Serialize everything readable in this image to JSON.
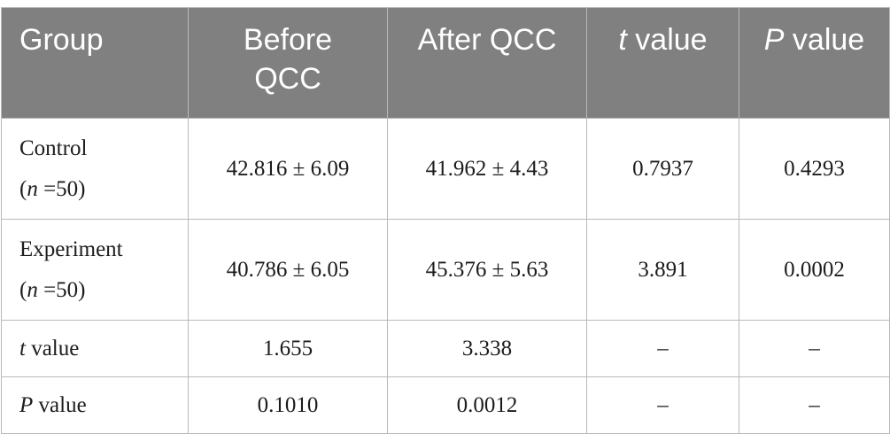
{
  "header": {
    "group": "Group",
    "before_line1": "Before",
    "before_line2": "QCC",
    "after": "After QCC",
    "t_symbol": "t",
    "t_word": " value",
    "p_symbol": "P",
    "p_word": " value"
  },
  "rows": [
    {
      "label": "Control",
      "n_open": "(",
      "n_symbol": "n",
      "n_value": " =50)",
      "before": "42.816 ± 6.09",
      "after": "41.962 ± 4.43",
      "t": "0.7937",
      "p": "0.4293"
    },
    {
      "label": "Experiment",
      "n_open": "(",
      "n_symbol": "n",
      "n_value": " =50)",
      "before": "40.786 ± 6.05",
      "after": "45.376 ± 5.63",
      "t": "3.891",
      "p": "0.0002"
    },
    {
      "label_symbol": "t",
      "label_word": " value",
      "before": "1.655",
      "after": "3.338",
      "t": "–",
      "p": "–"
    },
    {
      "label_symbol": "P",
      "label_word": " value",
      "before": "0.1010",
      "after": "0.0012",
      "t": "–",
      "p": "–"
    }
  ]
}
